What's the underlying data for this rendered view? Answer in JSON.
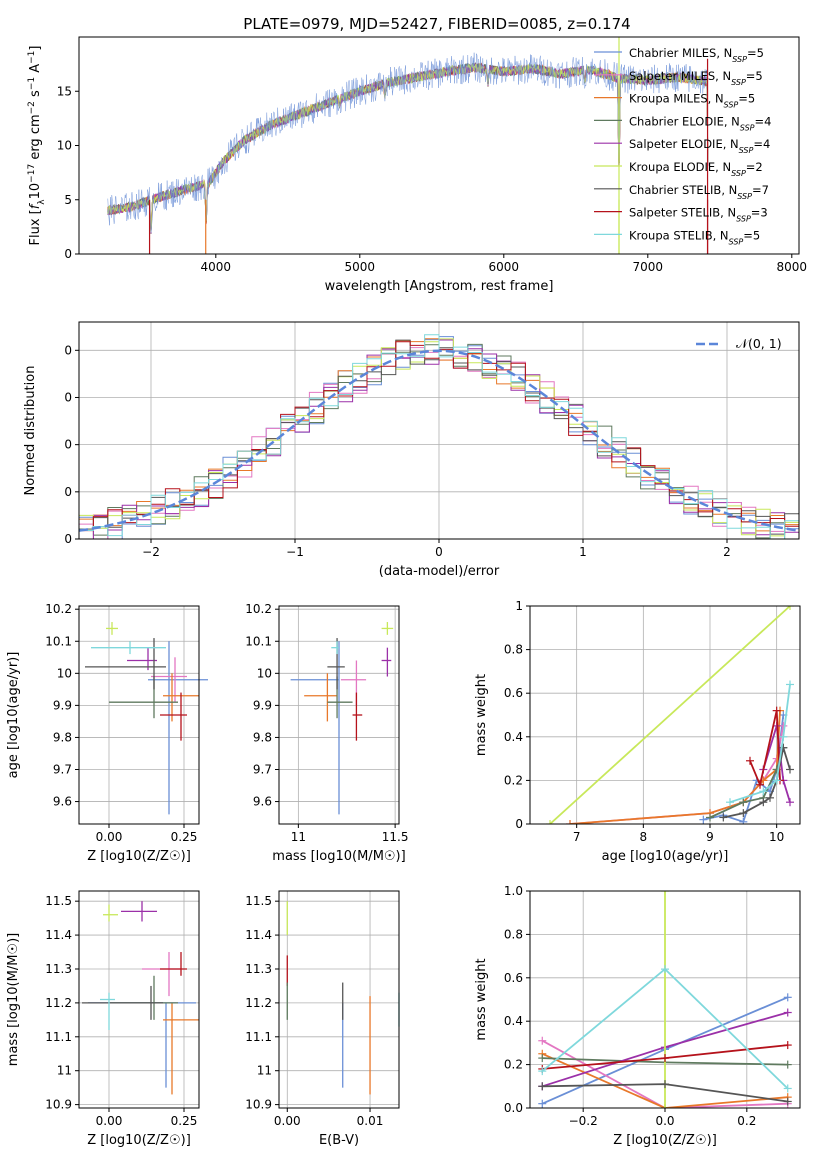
{
  "title": "PLATE=0979, MJD=52427, FIBERID=0085, z=0.174",
  "colors": {
    "chabrier_miles": "#6a8fd6",
    "salpeter_miles": "#e377c2",
    "kroupa_miles": "#e8782a",
    "chabrier_elodie": "#5f7a5f",
    "salpeter_elodie": "#9b30a8",
    "kroupa_elodie": "#c8e85a",
    "chabrier_stelib": "#555555",
    "salpeter_stelib": "#b5121b",
    "kroupa_stelib": "#7fd8dc",
    "normal": "#5b86d9",
    "grid": "#b0b0b0"
  },
  "chart_data": [
    {
      "id": "spectrum",
      "type": "line",
      "xlabel": "wavelength [Angstrom, rest frame]",
      "ylabel": "Flux [f_λ10^−17 erg cm^−2 s^−1 A^−1]",
      "xlim": [
        3050,
        8050
      ],
      "ylim": [
        0,
        20
      ],
      "xticks": [
        4000,
        5000,
        6000,
        7000,
        8000
      ],
      "yticks": [
        0,
        5,
        10,
        15
      ],
      "grid": false,
      "legend_position": "upper-right",
      "legend": [
        {
          "label": "Chabrier MILES, N",
          "sub": "SSP",
          "suffix": "=5",
          "color_key": "chabrier_miles"
        },
        {
          "label": "Salpeter MILES, N",
          "sub": "SSP",
          "suffix": "=5",
          "color_key": "salpeter_miles"
        },
        {
          "label": "Kroupa MILES, N",
          "sub": "SSP",
          "suffix": "=5",
          "color_key": "kroupa_miles"
        },
        {
          "label": "Chabrier ELODIE, N",
          "sub": "SSP",
          "suffix": "=4",
          "color_key": "chabrier_elodie"
        },
        {
          "label": "Salpeter ELODIE, N",
          "sub": "SSP",
          "suffix": "=4",
          "color_key": "salpeter_elodie"
        },
        {
          "label": "Kroupa ELODIE, N",
          "sub": "SSP",
          "suffix": "=2",
          "color_key": "kroupa_elodie"
        },
        {
          "label": "Chabrier STELIB, N",
          "sub": "SSP",
          "suffix": "=7",
          "color_key": "chabrier_stelib"
        },
        {
          "label": "Salpeter STELIB, N",
          "sub": "SSP",
          "suffix": "=3",
          "color_key": "salpeter_stelib"
        },
        {
          "label": "Kroupa STELIB, N",
          "sub": "SSP",
          "suffix": "=5",
          "color_key": "kroupa_stelib"
        }
      ],
      "continuum": [
        [
          3250,
          4.0
        ],
        [
          3400,
          4.3
        ],
        [
          3600,
          5.2
        ],
        [
          3800,
          6.0
        ],
        [
          3950,
          6.5
        ],
        [
          4050,
          8.5
        ],
        [
          4200,
          10.5
        ],
        [
          4400,
          12.0
        ],
        [
          4600,
          13.0
        ],
        [
          4800,
          14.0
        ],
        [
          5000,
          15.0
        ],
        [
          5200,
          15.8
        ],
        [
          5400,
          16.3
        ],
        [
          5600,
          16.8
        ],
        [
          5800,
          17.2
        ],
        [
          6000,
          16.8
        ],
        [
          6200,
          17.1
        ],
        [
          6400,
          16.6
        ],
        [
          6600,
          17.0
        ],
        [
          6800,
          16.2
        ],
        [
          7000,
          16.0
        ],
        [
          7200,
          16.3
        ],
        [
          7420,
          15.9
        ]
      ],
      "absorption_lines": [
        [
          3550,
          0
        ],
        [
          3933,
          0
        ],
        [
          4300,
          12.5
        ],
        [
          4861,
          13
        ],
        [
          5175,
          13.5
        ],
        [
          5890,
          14.5
        ],
        [
          6563,
          15
        ],
        [
          6800,
          0
        ],
        [
          7420,
          0
        ]
      ]
    },
    {
      "id": "residuals",
      "type": "histogram",
      "xlabel": "(data-model)/error",
      "ylabel": "Normed distribution",
      "xlim": [
        -2.5,
        2.5
      ],
      "ylim": [
        0,
        0.46
      ],
      "xticks": [
        -2,
        -1,
        0,
        1,
        2
      ],
      "yticks": [
        0.0,
        0.1,
        0.2,
        0.3,
        0.4
      ],
      "bin_width": 0.1,
      "grid": true,
      "legend": [
        {
          "label": "𝒩(0, 1)",
          "color_key": "normal"
        }
      ]
    },
    {
      "id": "age_vs_Z",
      "type": "errorbar",
      "xlabel": "Z [log10(Z/Z☉)]",
      "ylabel": "age  [log10(age/yr)]",
      "xlim": [
        -0.1,
        0.3
      ],
      "ylim": [
        9.53,
        10.21
      ],
      "xticks": [
        0.0,
        0.25
      ],
      "yticks": [
        9.6,
        9.7,
        9.8,
        9.9,
        10.0,
        10.1,
        10.2
      ],
      "points": [
        {
          "key": "chabrier_miles",
          "x": 0.2,
          "y": 9.98,
          "xlo": 0.07,
          "xhi": 0.13,
          "ylo": 0.42,
          "yhi": 0.12
        },
        {
          "key": "salpeter_miles",
          "x": 0.22,
          "y": 9.99,
          "xlo": 0.08,
          "xhi": 0.04,
          "ylo": 0.08,
          "yhi": 0.06
        },
        {
          "key": "kroupa_miles",
          "x": 0.21,
          "y": 9.93,
          "xlo": 0.03,
          "xhi": 0.09,
          "ylo": 0.08,
          "yhi": 0.07
        },
        {
          "key": "chabrier_elodie",
          "x": 0.15,
          "y": 9.91,
          "xlo": 0.15,
          "xhi": 0.08,
          "ylo": 0.05,
          "yhi": 0.08
        },
        {
          "key": "salpeter_elodie",
          "x": 0.13,
          "y": 10.04,
          "xlo": 0.07,
          "xhi": 0.03,
          "ylo": 0.03,
          "yhi": 0.04
        },
        {
          "key": "kroupa_elodie",
          "x": 0.01,
          "y": 10.14,
          "xlo": 0.02,
          "xhi": 0.02,
          "ylo": 0.02,
          "yhi": 0.02
        },
        {
          "key": "chabrier_stelib",
          "x": 0.15,
          "y": 10.02,
          "xlo": 0.23,
          "xhi": 0.04,
          "ylo": 0.07,
          "yhi": 0.09
        },
        {
          "key": "salpeter_stelib",
          "x": 0.24,
          "y": 9.87,
          "xlo": 0.07,
          "xhi": 0.02,
          "ylo": 0.08,
          "yhi": 0.07
        },
        {
          "key": "kroupa_stelib",
          "x": 0.07,
          "y": 10.08,
          "xlo": 0.13,
          "xhi": 0.12,
          "ylo": 0.02,
          "yhi": 0.02
        }
      ]
    },
    {
      "id": "age_vs_mass",
      "type": "errorbar",
      "xlabel": "mass [log10(M/M☉)]",
      "ylabel": "",
      "xlim": [
        10.9,
        11.52
      ],
      "ylim": [
        9.53,
        10.21
      ],
      "xticks": [
        11.0,
        11.5
      ],
      "yticks": [
        9.6,
        9.7,
        9.8,
        9.9,
        10.0,
        10.1,
        10.2
      ],
      "points": [
        {
          "key": "chabrier_miles",
          "x": 11.21,
          "y": 9.98,
          "xlo": 0.25,
          "xhi": 0.0,
          "ylo": 0.42,
          "yhi": 0.12
        },
        {
          "key": "salpeter_miles",
          "x": 11.3,
          "y": 9.98,
          "xlo": 0.08,
          "xhi": 0.05,
          "ylo": 0.08,
          "yhi": 0.06
        },
        {
          "key": "kroupa_miles",
          "x": 11.15,
          "y": 9.93,
          "xlo": 0.12,
          "xhi": 0.05,
          "ylo": 0.08,
          "yhi": 0.07
        },
        {
          "key": "chabrier_elodie",
          "x": 11.2,
          "y": 9.91,
          "xlo": 0.05,
          "xhi": 0.08,
          "ylo": 0.05,
          "yhi": 0.08
        },
        {
          "key": "salpeter_elodie",
          "x": 11.46,
          "y": 10.04,
          "xlo": 0.03,
          "xhi": 0.02,
          "ylo": 0.05,
          "yhi": 0.04
        },
        {
          "key": "kroupa_elodie",
          "x": 11.46,
          "y": 10.14,
          "xlo": 0.03,
          "xhi": 0.03,
          "ylo": 0.02,
          "yhi": 0.02
        },
        {
          "key": "chabrier_stelib",
          "x": 11.2,
          "y": 10.02,
          "xlo": 0.05,
          "xhi": 0.04,
          "ylo": 0.07,
          "yhi": 0.09
        },
        {
          "key": "salpeter_stelib",
          "x": 11.3,
          "y": 9.87,
          "xlo": 0.02,
          "xhi": 0.03,
          "ylo": 0.08,
          "yhi": 0.07
        },
        {
          "key": "kroupa_stelib",
          "x": 11.2,
          "y": 10.08,
          "xlo": 0.03,
          "xhi": 0.01,
          "ylo": 0.02,
          "yhi": 0.02
        }
      ]
    },
    {
      "id": "weight_vs_age",
      "type": "line",
      "xlabel": "age  [log10(age/yr)]",
      "ylabel": "mass weight",
      "xlim": [
        6.3,
        10.35
      ],
      "ylim": [
        0,
        1
      ],
      "xticks": [
        7,
        8,
        9,
        10
      ],
      "yticks": [
        0.0,
        0.2,
        0.4,
        0.6,
        0.8,
        1.0
      ],
      "series": [
        {
          "key": "kroupa_elodie",
          "x": [
            6.6,
            10.2
          ],
          "y": [
            0.0,
            1.0
          ]
        },
        {
          "key": "chabrier_miles",
          "x": [
            8.9,
            9.2,
            9.5,
            9.7,
            9.9,
            10.0,
            10.1
          ],
          "y": [
            0.02,
            0.04,
            0.01,
            0.2,
            0.15,
            0.25,
            0.5
          ]
        },
        {
          "key": "salpeter_miles",
          "x": [
            6.9,
            9.0,
            9.5,
            9.8,
            10.0,
            10.1
          ],
          "y": [
            0.0,
            0.05,
            0.1,
            0.2,
            0.3,
            0.45
          ]
        },
        {
          "key": "kroupa_miles",
          "x": [
            6.9,
            9.0,
            9.5,
            9.8,
            10.0,
            10.05
          ],
          "y": [
            0.0,
            0.05,
            0.1,
            0.2,
            0.25,
            0.52
          ]
        },
        {
          "key": "chabrier_elodie",
          "x": [
            9.0,
            9.5,
            9.8,
            10.0,
            10.1
          ],
          "y": [
            0.03,
            0.1,
            0.12,
            0.25,
            0.35
          ]
        },
        {
          "key": "salpeter_elodie",
          "x": [
            9.8,
            10.0,
            10.1,
            10.2
          ],
          "y": [
            0.25,
            0.45,
            0.2,
            0.1
          ]
        },
        {
          "key": "chabrier_stelib",
          "x": [
            9.2,
            9.5,
            9.8,
            9.9,
            10.0,
            10.1,
            10.2
          ],
          "y": [
            0.03,
            0.05,
            0.1,
            0.12,
            0.2,
            0.35,
            0.25
          ]
        },
        {
          "key": "salpeter_stelib",
          "x": [
            9.6,
            9.75,
            10.0,
            10.05
          ],
          "y": [
            0.29,
            0.18,
            0.52,
            0.2
          ]
        },
        {
          "key": "kroupa_stelib",
          "x": [
            9.3,
            9.8,
            10.0,
            10.1,
            10.2
          ],
          "y": [
            0.1,
            0.15,
            0.2,
            0.4,
            0.64
          ]
        }
      ]
    },
    {
      "id": "mass_vs_Z",
      "type": "errorbar",
      "xlabel": "Z [log10(Z/Z☉)]",
      "ylabel": "mass [log10(M/M☉)]",
      "xlim": [
        -0.1,
        0.3
      ],
      "ylim": [
        10.89,
        11.53
      ],
      "xticks": [
        0.0,
        0.25
      ],
      "yticks": [
        10.9,
        11.0,
        11.1,
        11.2,
        11.3,
        11.4,
        11.5
      ],
      "points": [
        {
          "key": "chabrier_miles",
          "x": 0.19,
          "y": 11.2,
          "xlo": 0.26,
          "xhi": 0.1,
          "ylo": 0.25,
          "yhi": 0.0
        },
        {
          "key": "salpeter_miles",
          "x": 0.2,
          "y": 11.3,
          "xlo": 0.09,
          "xhi": 0.04,
          "ylo": 0.08,
          "yhi": 0.05
        },
        {
          "key": "kroupa_miles",
          "x": 0.21,
          "y": 11.15,
          "xlo": 0.03,
          "xhi": 0.09,
          "ylo": 0.22,
          "yhi": 0.05
        },
        {
          "key": "chabrier_elodie",
          "x": 0.15,
          "y": 11.2,
          "xlo": 0.15,
          "xhi": 0.08,
          "ylo": 0.05,
          "yhi": 0.08
        },
        {
          "key": "salpeter_elodie",
          "x": 0.11,
          "y": 11.47,
          "xlo": 0.07,
          "xhi": 0.05,
          "ylo": 0.03,
          "yhi": 0.03
        },
        {
          "key": "kroupa_elodie",
          "x": 0.0,
          "y": 11.46,
          "xlo": 0.02,
          "xhi": 0.03,
          "ylo": 0.02,
          "yhi": 0.03
        },
        {
          "key": "chabrier_stelib",
          "x": 0.14,
          "y": 11.2,
          "xlo": 0.23,
          "xhi": 0.04,
          "ylo": 0.05,
          "yhi": 0.05
        },
        {
          "key": "salpeter_stelib",
          "x": 0.24,
          "y": 11.3,
          "xlo": 0.07,
          "xhi": 0.02,
          "ylo": 0.02,
          "yhi": 0.05
        },
        {
          "key": "kroupa_stelib",
          "x": 0.0,
          "y": 11.21,
          "xlo": 0.03,
          "xhi": 0.02,
          "ylo": 0.09,
          "yhi": 0.02
        }
      ]
    },
    {
      "id": "mass_vs_ebv",
      "type": "errorbar",
      "xlabel": "E(B-V)",
      "ylabel": "",
      "xlim": [
        -0.001,
        0.0135
      ],
      "ylim": [
        10.89,
        11.53
      ],
      "xticks": [
        0.0,
        0.01
      ],
      "yticks": [
        10.9,
        11.0,
        11.1,
        11.2,
        11.3,
        11.4,
        11.5
      ],
      "points": [
        {
          "key": "chabrier_miles",
          "x": 0.0067,
          "y": 11.2,
          "xlo": 0,
          "xhi": 0,
          "ylo": 0.25,
          "yhi": 0.0
        },
        {
          "key": "kroupa_miles",
          "x": 0.01,
          "y": 11.15,
          "xlo": 0,
          "xhi": 0,
          "ylo": 0.22,
          "yhi": 0.07
        },
        {
          "key": "chabrier_stelib",
          "x": 0.0067,
          "y": 11.2,
          "xlo": 0,
          "xhi": 0,
          "ylo": 0.05,
          "yhi": 0.06
        },
        {
          "key": "kroupa_elodie",
          "x": 0.0,
          "y": 11.45,
          "xlo": 0,
          "xhi": 0,
          "ylo": 0.05,
          "yhi": 0.05
        },
        {
          "key": "salpeter_stelib",
          "x": 0.0,
          "y": 11.28,
          "xlo": 0,
          "xhi": 0,
          "ylo": 0.03,
          "yhi": 0.06
        },
        {
          "key": "chabrier_elodie",
          "x": 0.0,
          "y": 11.2,
          "xlo": 0,
          "xhi": 0,
          "ylo": 0.05,
          "yhi": 0.06
        },
        {
          "key": "kroupa_stelib",
          "x": 0.0135,
          "y": 11.18,
          "xlo": 0,
          "xhi": 0,
          "ylo": 0.05,
          "yhi": 0.05
        }
      ]
    },
    {
      "id": "weight_vs_Z",
      "type": "line",
      "xlabel": "Z [log10(Z/Z☉)]",
      "ylabel": "mass weight",
      "xlim": [
        -0.33,
        0.33
      ],
      "ylim": [
        0,
        1
      ],
      "xticks": [
        -0.2,
        0.0,
        0.2
      ],
      "yticks": [
        0.0,
        0.2,
        0.4,
        0.6,
        0.8,
        1.0
      ],
      "series": [
        {
          "key": "chabrier_miles",
          "x": [
            -0.3,
            0.0,
            0.3
          ],
          "y": [
            0.02,
            0.27,
            0.51
          ]
        },
        {
          "key": "salpeter_miles",
          "x": [
            -0.3,
            0.0,
            0.3
          ],
          "y": [
            0.31,
            0.0,
            0.02
          ]
        },
        {
          "key": "kroupa_miles",
          "x": [
            -0.3,
            0.0,
            0.3
          ],
          "y": [
            0.25,
            0.0,
            0.05
          ]
        },
        {
          "key": "chabrier_elodie",
          "x": [
            -0.3,
            0.0,
            0.3
          ],
          "y": [
            0.23,
            0.21,
            0.2
          ]
        },
        {
          "key": "salpeter_elodie",
          "x": [
            -0.3,
            0.0,
            0.3
          ],
          "y": [
            0.1,
            0.28,
            0.44
          ]
        },
        {
          "key": "kroupa_elodie",
          "x": [
            0.0,
            0.0
          ],
          "y": [
            0.0,
            1.0
          ]
        },
        {
          "key": "chabrier_stelib",
          "x": [
            -0.3,
            0.0,
            0.3
          ],
          "y": [
            0.1,
            0.11,
            0.03
          ]
        },
        {
          "key": "salpeter_stelib",
          "x": [
            -0.3,
            0.0,
            0.3
          ],
          "y": [
            0.18,
            0.23,
            0.29
          ]
        },
        {
          "key": "kroupa_stelib",
          "x": [
            -0.3,
            0.0,
            0.3
          ],
          "y": [
            0.17,
            0.64,
            0.09
          ]
        }
      ]
    }
  ]
}
